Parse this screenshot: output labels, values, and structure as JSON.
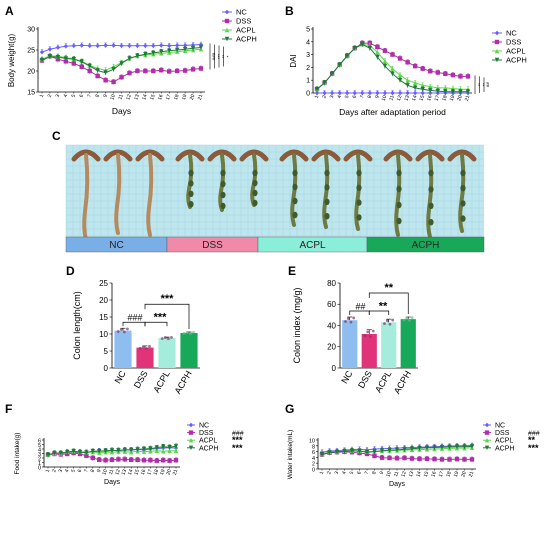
{
  "colors": {
    "NC": "#6a5cff",
    "DSS": "#b02ea8",
    "ACPL": "#5bd84a",
    "ACPH": "#1f7a3a",
    "photo_bg": "#bfe6ee",
    "bar_NC": "#8fbdf0",
    "bar_DSS": "#e0337a",
    "bar_ACPL": "#a6ecdc",
    "bar_ACPH": "#17a85a",
    "band_NC": "#7aaee6",
    "band_DSS": "#f08aa8",
    "band_ACPL": "#8aeed8",
    "band_ACPH": "#17a85a"
  },
  "panel_c": {
    "label": "C",
    "bands": [
      "NC",
      "DSS",
      "ACPL",
      "ACPH"
    ]
  },
  "chart_data": [
    {
      "panel": "A",
      "type": "line",
      "xlabel": "Days",
      "ylabel": "Body weight(g)",
      "ylim": [
        15,
        30
      ],
      "yticks": [
        15,
        20,
        25,
        30
      ],
      "x": [
        1,
        2,
        3,
        4,
        5,
        6,
        7,
        8,
        9,
        10,
        11,
        12,
        13,
        14,
        15,
        16,
        17,
        18,
        19,
        20,
        21
      ],
      "legend_position": "right",
      "series": [
        {
          "name": "NC",
          "values": [
            24.5,
            25.2,
            25.6,
            25.9,
            26.0,
            26.1,
            26.0,
            26.0,
            26.1,
            26.1,
            26.0,
            26.0,
            26.0,
            26.0,
            26.0,
            26.1,
            26.0,
            26.1,
            26.1,
            26.2,
            26.3
          ]
        },
        {
          "name": "DSS",
          "values": [
            22.5,
            23.5,
            22.8,
            22.3,
            21.8,
            21.0,
            20.0,
            18.8,
            17.8,
            17.4,
            18.5,
            19.5,
            20.0,
            20.0,
            20.0,
            20.2,
            19.9,
            20.0,
            20.1,
            20.4,
            20.6
          ]
        },
        {
          "name": "ACPL",
          "values": [
            22.8,
            23.6,
            23.5,
            23.2,
            22.9,
            22.3,
            21.3,
            20.6,
            20.2,
            21.0,
            22.0,
            23.0,
            23.6,
            23.8,
            24.0,
            24.2,
            24.4,
            24.6,
            24.8,
            25.0,
            25.2
          ]
        },
        {
          "name": "ACPH",
          "values": [
            22.6,
            23.4,
            23.3,
            23.0,
            22.8,
            22.2,
            21.2,
            20.1,
            19.6,
            20.4,
            21.8,
            23.0,
            23.6,
            24.0,
            24.3,
            24.6,
            24.8,
            25.0,
            25.2,
            25.4,
            25.6
          ]
        }
      ],
      "significance": [
        "###",
        "***",
        "**",
        "*"
      ]
    },
    {
      "panel": "B",
      "type": "line",
      "xlabel": "Days after adaptation period",
      "ylabel": "DAI",
      "ylim": [
        0,
        5
      ],
      "yticks": [
        0,
        1,
        2,
        3,
        4,
        5
      ],
      "x": [
        1,
        2,
        3,
        4,
        5,
        6,
        7,
        8,
        9,
        10,
        11,
        12,
        13,
        14,
        15,
        16,
        17,
        18,
        19,
        20,
        21
      ],
      "legend_position": "right",
      "series": [
        {
          "name": "NC",
          "values": [
            0,
            0,
            0,
            0,
            0,
            0,
            0,
            0,
            0,
            0,
            0,
            0,
            0,
            0,
            0,
            0,
            0,
            0,
            0,
            0,
            0
          ]
        },
        {
          "name": "DSS",
          "values": [
            0.3,
            0.8,
            1.5,
            2.2,
            2.9,
            3.5,
            3.9,
            3.9,
            3.6,
            3.3,
            3.0,
            2.7,
            2.4,
            2.1,
            1.9,
            1.7,
            1.6,
            1.5,
            1.4,
            1.3,
            1.3
          ]
        },
        {
          "name": "ACPL",
          "values": [
            0.3,
            0.8,
            1.5,
            2.2,
            2.9,
            3.5,
            3.8,
            3.7,
            3.2,
            2.5,
            1.9,
            1.4,
            1.0,
            0.8,
            0.6,
            0.5,
            0.4,
            0.4,
            0.35,
            0.3,
            0.3
          ]
        },
        {
          "name": "ACPH",
          "values": [
            0.3,
            0.8,
            1.5,
            2.2,
            2.9,
            3.5,
            3.8,
            3.5,
            2.8,
            2.1,
            1.5,
            1.0,
            0.6,
            0.4,
            0.3,
            0.2,
            0.15,
            0.1,
            0.1,
            0.1,
            0.1
          ]
        }
      ],
      "significance": [
        "**",
        "**",
        "##"
      ]
    },
    {
      "panel": "D",
      "type": "bar",
      "ylabel": "Colon length(cm)",
      "ylim": [
        0,
        25
      ],
      "yticks": [
        0,
        5,
        10,
        15,
        20,
        25
      ],
      "categories": [
        "NC",
        "DSS",
        "ACPL",
        "ACPH"
      ],
      "values": [
        11.0,
        6.0,
        8.8,
        10.3
      ],
      "errors": [
        0.7,
        0.5,
        0.3,
        0.3
      ],
      "significance": [
        "###",
        "***",
        "***"
      ]
    },
    {
      "panel": "E",
      "type": "bar",
      "ylabel": "Colon index (mg/g)",
      "ylim": [
        0,
        80
      ],
      "yticks": [
        0,
        20,
        40,
        60,
        80
      ],
      "categories": [
        "NC",
        "DSS",
        "ACPL",
        "ACPH"
      ],
      "values": [
        45,
        32,
        43,
        46
      ],
      "errors": [
        3,
        4,
        3,
        2
      ],
      "significance": [
        "##",
        "**",
        "**"
      ]
    },
    {
      "panel": "F",
      "type": "line",
      "xlabel": "Days",
      "ylabel": "Food intake(g)",
      "ylim": [
        0,
        6
      ],
      "yticks": [
        0,
        1,
        2,
        3,
        4,
        5,
        6
      ],
      "x": [
        1,
        2,
        3,
        4,
        5,
        6,
        7,
        8,
        9,
        10,
        11,
        12,
        13,
        14,
        15,
        16,
        17,
        18,
        19,
        20,
        21
      ],
      "series": [
        {
          "name": "NC",
          "values": [
            2.7,
            3.0,
            2.8,
            3.0,
            3.2,
            3.3,
            3.3,
            3.4,
            3.6,
            3.5,
            3.7,
            3.6,
            3.8,
            3.8,
            3.9,
            3.8,
            4.0,
            4.1,
            4.2,
            4.3,
            4.2
          ]
        },
        {
          "name": "DSS",
          "values": [
            2.7,
            2.9,
            2.8,
            2.9,
            3.1,
            2.9,
            2.5,
            2.0,
            1.6,
            1.5,
            1.6,
            1.7,
            1.7,
            1.6,
            1.6,
            1.5,
            1.5,
            1.4,
            1.5,
            1.4,
            1.5
          ]
        },
        {
          "name": "ACPL",
          "values": [
            2.7,
            3.0,
            3.0,
            3.4,
            3.5,
            3.4,
            3.3,
            3.3,
            3.2,
            3.3,
            3.3,
            3.4,
            3.4,
            3.3,
            3.5,
            3.4,
            3.5,
            3.6,
            3.5,
            3.6,
            3.6
          ]
        },
        {
          "name": "ACPH",
          "values": [
            2.7,
            3.1,
            3.1,
            3.3,
            3.5,
            3.3,
            3.2,
            3.5,
            3.5,
            3.6,
            3.7,
            3.7,
            3.8,
            3.8,
            3.9,
            4.0,
            4.1,
            4.3,
            4.5,
            4.4,
            4.6
          ]
        }
      ],
      "legend": [
        {
          "name": "NC",
          "sig": ""
        },
        {
          "name": "DSS",
          "sig": "###"
        },
        {
          "name": "ACPL",
          "sig": "***"
        },
        {
          "name": "ACPH",
          "sig": "***"
        }
      ]
    },
    {
      "panel": "G",
      "type": "line",
      "xlabel": "Days",
      "ylabel": "Water intake(mL)",
      "ylim": [
        0,
        10
      ],
      "yticks": [
        0,
        2,
        4,
        6,
        8,
        10
      ],
      "x": [
        1,
        2,
        3,
        4,
        5,
        6,
        7,
        8,
        9,
        10,
        11,
        12,
        13,
        14,
        15,
        16,
        17,
        18,
        19,
        20,
        21
      ],
      "series": [
        {
          "name": "NC",
          "values": [
            5.8,
            6.2,
            6.3,
            6.5,
            6.7,
            6.8,
            6.6,
            6.9,
            7.0,
            7.1,
            7.2,
            7.3,
            7.4,
            7.5,
            7.6,
            7.7,
            7.8,
            7.9,
            8.0,
            8.0,
            8.1
          ]
        },
        {
          "name": "DSS",
          "values": [
            5.0,
            5.6,
            5.8,
            5.9,
            5.8,
            5.5,
            5.2,
            4.5,
            3.9,
            3.8,
            3.7,
            3.8,
            3.6,
            3.5,
            3.5,
            3.4,
            3.3,
            3.3,
            3.4,
            3.3,
            3.3
          ]
        },
        {
          "name": "ACPL",
          "values": [
            5.2,
            5.8,
            6.0,
            6.2,
            6.3,
            6.2,
            6.0,
            6.0,
            6.2,
            6.3,
            6.4,
            6.5,
            6.6,
            6.7,
            6.8,
            6.9,
            7.0,
            7.1,
            7.2,
            7.2,
            7.3
          ]
        },
        {
          "name": "ACPH",
          "values": [
            5.0,
            5.7,
            5.9,
            6.1,
            6.3,
            6.2,
            5.8,
            6.0,
            6.3,
            6.5,
            6.6,
            6.8,
            7.0,
            7.2,
            7.3,
            7.4,
            7.5,
            7.6,
            7.7,
            7.7,
            7.8
          ]
        }
      ],
      "legend": [
        {
          "name": "NC",
          "sig": ""
        },
        {
          "name": "DSS",
          "sig": "###"
        },
        {
          "name": "ACPL",
          "sig": "**"
        },
        {
          "name": "ACPH",
          "sig": "***"
        }
      ]
    }
  ]
}
